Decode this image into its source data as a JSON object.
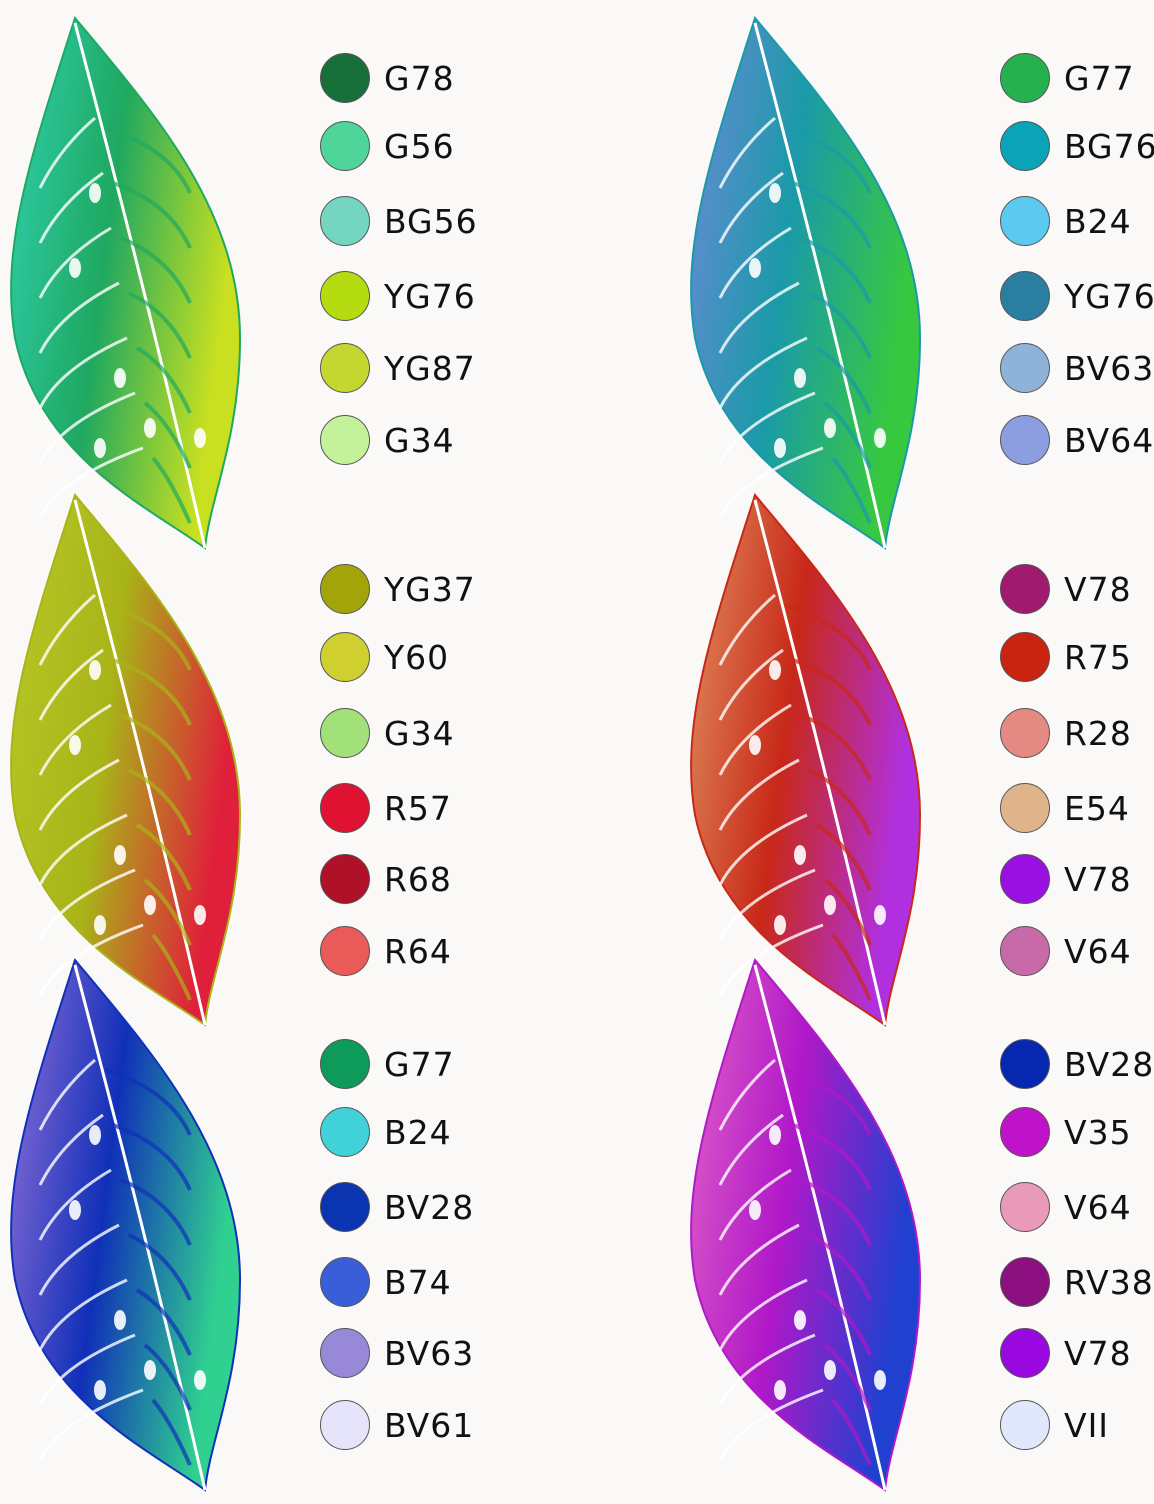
{
  "palettes": [
    {
      "leaf_colors": [
        "#2fd0b0",
        "#1fa860",
        "#c8e020"
      ],
      "swatches": [
        {
          "code": "G78",
          "color": "#17703a"
        },
        {
          "code": "G56",
          "color": "#4fd49a"
        },
        {
          "code": "BG56",
          "color": "#74d6c0"
        },
        {
          "code": "YG76",
          "color": "#b4dc10"
        },
        {
          "code": "YG87",
          "color": "#c4d630"
        },
        {
          "code": "G34",
          "color": "#c4f29a"
        }
      ]
    },
    {
      "leaf_colors": [
        "#6a8ad8",
        "#1a9aa8",
        "#38c840"
      ],
      "swatches": [
        {
          "code": "G77",
          "color": "#26b050"
        },
        {
          "code": "BG76",
          "color": "#0aa3b8"
        },
        {
          "code": "B24",
          "color": "#5ccaf0"
        },
        {
          "code": "YG76",
          "color": "#2a7ea0"
        },
        {
          "code": "BV63",
          "color": "#8fb2d8"
        },
        {
          "code": "BV64",
          "color": "#8d9ee0"
        }
      ]
    },
    {
      "leaf_colors": [
        "#b8c828",
        "#a8b418",
        "#e0203a"
      ],
      "swatches": [
        {
          "code": "YG37",
          "color": "#a3a40a"
        },
        {
          "code": "Y60",
          "color": "#cfcf30"
        },
        {
          "code": "G34",
          "color": "#a2e07a"
        },
        {
          "code": "R57",
          "color": "#e01232"
        },
        {
          "code": "R68",
          "color": "#b01028"
        },
        {
          "code": "R64",
          "color": "#ea5a58"
        }
      ]
    },
    {
      "leaf_colors": [
        "#e09060",
        "#c82818",
        "#b030e0"
      ],
      "swatches": [
        {
          "code": "V78",
          "color": "#a01a70"
        },
        {
          "code": "R75",
          "color": "#c82410"
        },
        {
          "code": "R28",
          "color": "#e48a82"
        },
        {
          "code": "E54",
          "color": "#e0b48a"
        },
        {
          "code": "V78",
          "color": "#9a10e0"
        },
        {
          "code": "V64",
          "color": "#c86aa8"
        }
      ]
    },
    {
      "leaf_colors": [
        "#9070d8",
        "#1030b8",
        "#30d090"
      ],
      "swatches": [
        {
          "code": "G77",
          "color": "#0e9a5a"
        },
        {
          "code": "B24",
          "color": "#40d2d8"
        },
        {
          "code": "BV28",
          "color": "#0a34b0"
        },
        {
          "code": "B74",
          "color": "#3a5ed8"
        },
        {
          "code": "BV63",
          "color": "#9888d8"
        },
        {
          "code": "BV61",
          "color": "#e6e4fb"
        }
      ]
    },
    {
      "leaf_colors": [
        "#e060c8",
        "#b018c8",
        "#2040d0"
      ],
      "swatches": [
        {
          "code": "BV28",
          "color": "#0628b0"
        },
        {
          "code": "V35",
          "color": "#c012c8"
        },
        {
          "code": "V64",
          "color": "#e89ab8"
        },
        {
          "code": "RV38",
          "color": "#8c1080"
        },
        {
          "code": "V78",
          "color": "#9a08e0"
        },
        {
          "code": "VII",
          "color": "#e0e8fb"
        }
      ]
    }
  ]
}
